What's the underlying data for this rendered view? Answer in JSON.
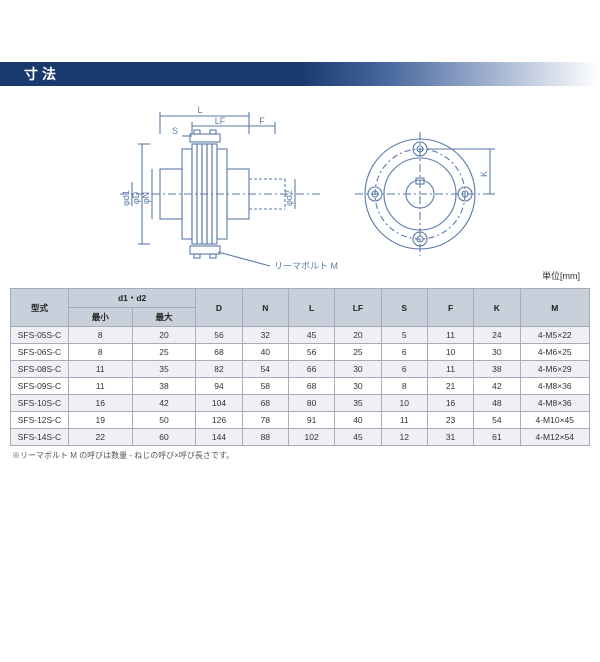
{
  "header": {
    "title": "寸法"
  },
  "unit_label": "単位[mm]",
  "diagram": {
    "labels": {
      "L": "L",
      "LF": "LF",
      "F": "F",
      "S": "S",
      "phiD": "φD",
      "phiN": "φN",
      "phid1": "φd1",
      "phid2": "φd2",
      "K": "K",
      "bolt": "リーマボルト M"
    },
    "stroke_color": "#5a7aa8",
    "stroke_width": 1.1
  },
  "table": {
    "header": {
      "model": "型式",
      "d1d2": "d1・d2",
      "d1d2_min": "最小",
      "d1d2_max": "最大",
      "D": "D",
      "N": "N",
      "L": "L",
      "LF": "LF",
      "S": "S",
      "F": "F",
      "K": "K",
      "M": "M"
    },
    "rows": [
      {
        "model": "SFS-05S-C",
        "min": "8",
        "max": "20",
        "D": "56",
        "N": "32",
        "L": "45",
        "LF": "20",
        "S": "5",
        "F": "11",
        "K": "24",
        "M": "4-M5×22"
      },
      {
        "model": "SFS-06S-C",
        "min": "8",
        "max": "25",
        "D": "68",
        "N": "40",
        "L": "56",
        "LF": "25",
        "S": "6",
        "F": "10",
        "K": "30",
        "M": "4-M6×25"
      },
      {
        "model": "SFS-08S-C",
        "min": "11",
        "max": "35",
        "D": "82",
        "N": "54",
        "L": "66",
        "LF": "30",
        "S": "6",
        "F": "11",
        "K": "38",
        "M": "4-M6×29"
      },
      {
        "model": "SFS-09S-C",
        "min": "11",
        "max": "38",
        "D": "94",
        "N": "58",
        "L": "68",
        "LF": "30",
        "S": "8",
        "F": "21",
        "K": "42",
        "M": "4-M8×36"
      },
      {
        "model": "SFS-10S-C",
        "min": "16",
        "max": "42",
        "D": "104",
        "N": "68",
        "L": "80",
        "LF": "35",
        "S": "10",
        "F": "16",
        "K": "48",
        "M": "4-M8×36"
      },
      {
        "model": "SFS-12S-C",
        "min": "19",
        "max": "50",
        "D": "126",
        "N": "78",
        "L": "91",
        "LF": "40",
        "S": "11",
        "F": "23",
        "K": "54",
        "M": "4-M10×45"
      },
      {
        "model": "SFS-14S-C",
        "min": "22",
        "max": "60",
        "D": "144",
        "N": "88",
        "L": "102",
        "LF": "45",
        "S": "12",
        "F": "31",
        "K": "61",
        "M": "4-M12×54"
      }
    ]
  },
  "footnote": "※リーマボルト M の呼びは数量 - ねじの呼び×呼び長さです。"
}
